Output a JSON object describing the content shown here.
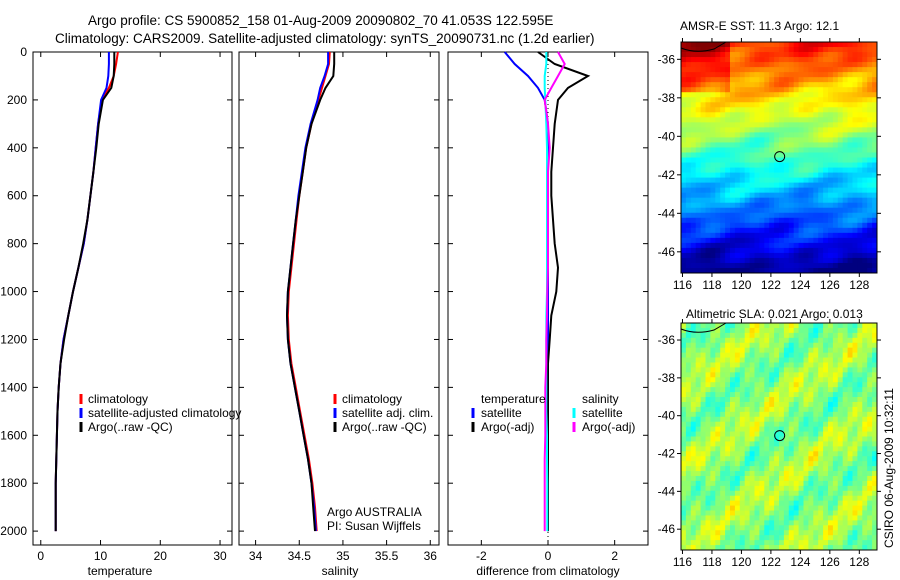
{
  "chart_data": [
    {
      "type": "line",
      "title_lines": [
        "Argo profile: CS 5900852_158 01-Aug-2009 20090802_70 41.053S 122.595E",
        "Climatology: CARS2009. Satellite-adjusted climatology: synTS_20090731.nc (1.2d earlier)"
      ],
      "xlabel": "temperature",
      "ylabel": "",
      "xlim": [
        -1.3,
        32
      ],
      "ylim": [
        0,
        2058
      ],
      "xticks": [
        0,
        10,
        20,
        30
      ],
      "yticks": [
        0,
        200,
        400,
        600,
        800,
        1000,
        1200,
        1400,
        1600,
        1800,
        2000
      ],
      "depth": [
        0,
        50,
        100,
        150,
        200,
        300,
        400,
        500,
        600,
        700,
        800,
        900,
        1000,
        1100,
        1200,
        1300,
        1400,
        1500,
        1600,
        1700,
        1800,
        1900,
        2000
      ],
      "series": [
        {
          "name": "climatology",
          "color": "#ff0000",
          "values": [
            12.9,
            12.6,
            12.2,
            11.4,
            10.2,
            9.6,
            9.2,
            8.8,
            8.3,
            7.8,
            7.2,
            6.3,
            5.4,
            4.6,
            3.8,
            3.3,
            3.0,
            2.8,
            2.7,
            2.6,
            2.5,
            2.5,
            2.5
          ]
        },
        {
          "name": "satellite-adjusted climatology",
          "color": "#0000ff",
          "values": [
            11.4,
            11.4,
            11.3,
            11.0,
            10.1,
            9.6,
            9.2,
            8.8,
            8.3,
            7.8,
            7.2,
            6.3,
            5.4,
            4.6,
            3.8,
            3.3,
            3.0,
            2.8,
            2.7,
            2.6,
            2.5,
            2.5,
            2.5
          ]
        },
        {
          "name": "Argo(..raw -QC)",
          "color": "#000000",
          "values": [
            12.3,
            12.3,
            12.2,
            11.8,
            10.4,
            9.7,
            9.3,
            8.8,
            8.3,
            7.8,
            7.1,
            6.3,
            5.4,
            4.6,
            3.9,
            3.3,
            3.0,
            2.8,
            2.7,
            2.6,
            2.5,
            2.5,
            2.5
          ]
        }
      ]
    },
    {
      "type": "line",
      "xlabel": "salinity",
      "xlim": [
        33.81,
        36.1
      ],
      "ylim": [
        0,
        2058
      ],
      "xticks": [
        "34",
        "34.5",
        "35",
        "35.5",
        "36"
      ],
      "annotation": [
        "Argo AUSTRALIA",
        "PI: Susan Wijffels"
      ],
      "depth": [
        0,
        50,
        100,
        150,
        200,
        300,
        400,
        500,
        600,
        700,
        800,
        900,
        1000,
        1100,
        1200,
        1300,
        1400,
        1500,
        1600,
        1700,
        1800,
        1900,
        2000
      ],
      "series": [
        {
          "name": "climatology",
          "color": "#ff0000",
          "values": [
            34.85,
            34.84,
            34.8,
            34.76,
            34.72,
            34.64,
            34.58,
            34.54,
            34.5,
            34.47,
            34.44,
            34.41,
            34.38,
            34.37,
            34.38,
            34.41,
            34.46,
            34.51,
            34.56,
            34.61,
            34.65,
            34.68,
            34.7
          ]
        },
        {
          "name": "satellite adj. clim.",
          "color": "#0000ff",
          "values": [
            34.83,
            34.83,
            34.79,
            34.74,
            34.71,
            34.63,
            34.57,
            34.53,
            34.49,
            34.46,
            34.43,
            34.4,
            34.37,
            34.36,
            34.37,
            34.4,
            34.45,
            34.5,
            34.55,
            34.6,
            34.64,
            34.67,
            34.69
          ]
        },
        {
          "name": "Argo(..raw -QC)",
          "color": "#000000",
          "values": [
            34.9,
            34.9,
            34.89,
            34.8,
            34.74,
            34.64,
            34.58,
            34.54,
            34.5,
            34.46,
            34.43,
            34.4,
            34.37,
            34.36,
            34.37,
            34.4,
            34.45,
            34.5,
            34.55,
            34.6,
            34.64,
            34.66,
            34.68
          ]
        }
      ]
    },
    {
      "type": "line",
      "xlabel": "difference from climatology",
      "xlim": [
        -3.0,
        3.0
      ],
      "ylim": [
        0,
        2058
      ],
      "xticks": [
        -2,
        0,
        2
      ],
      "legend_headers": [
        "temperature",
        "salinity"
      ],
      "depth": [
        0,
        50,
        100,
        150,
        200,
        300,
        400,
        500,
        600,
        700,
        800,
        900,
        1000,
        1100,
        1200,
        1300,
        1400,
        1500,
        1600,
        1700,
        1800,
        1900,
        2000
      ],
      "series": [
        {
          "name": "satellite",
          "group": "temperature",
          "color": "#0000ff",
          "values": [
            -1.3,
            -1.0,
            -0.6,
            -0.3,
            -0.1,
            0,
            0,
            0,
            0,
            0,
            0,
            0,
            0,
            0,
            0,
            0,
            0,
            0,
            0,
            0,
            0,
            0,
            0
          ]
        },
        {
          "name": "Argo(-adj)",
          "group": "temperature",
          "color": "#000000",
          "values": [
            -0.3,
            0.2,
            1.2,
            0.6,
            0.3,
            0.2,
            0.15,
            0.1,
            0.1,
            0.15,
            0.2,
            0.3,
            0.25,
            0.1,
            0.05,
            0,
            0,
            0,
            0,
            0,
            0,
            0,
            0
          ]
        },
        {
          "name": "satellite",
          "group": "salinity",
          "color": "#00ffff",
          "values": [
            -0.05,
            -0.05,
            -0.1,
            -0.1,
            -0.08,
            -0.05,
            -0.03,
            -0.03,
            -0.03,
            -0.03,
            -0.03,
            -0.03,
            -0.03,
            -0.05,
            -0.05,
            -0.05,
            -0.05,
            -0.05,
            -0.03,
            -0.03,
            -0.02,
            -0.02,
            -0.02
          ]
        },
        {
          "name": "Argo(-adj)",
          "group": "salinity",
          "color": "#ff00ff",
          "values": [
            0.3,
            0.5,
            0.3,
            0.1,
            -0.1,
            0,
            0.05,
            0,
            0,
            0,
            0,
            0,
            -0.02,
            -0.03,
            -0.05,
            -0.05,
            -0.08,
            -0.08,
            -0.08,
            -0.1,
            -0.1,
            -0.1,
            -0.1
          ]
        }
      ]
    },
    {
      "type": "heatmap",
      "title": "AMSR-E SST: 11.3 Argo: 12.1",
      "xlim": [
        115.9,
        129.2
      ],
      "ylim": [
        -47.1,
        -35.1
      ],
      "xticks": [
        116,
        118,
        120,
        122,
        124,
        126,
        128
      ],
      "yticks": [
        -36,
        -38,
        -40,
        -42,
        -44,
        -46
      ],
      "marker": {
        "lon": 122.595,
        "lat": -41.053
      },
      "colormap": "jet"
    },
    {
      "type": "heatmap",
      "title": "Altimetric SLA: 0.021 Argo: 0.013",
      "xlim": [
        115.9,
        129.2
      ],
      "ylim": [
        -47.1,
        -35.1
      ],
      "xticks": [
        116,
        118,
        120,
        122,
        124,
        126,
        128
      ],
      "yticks": [
        -36,
        -38,
        -40,
        -42,
        -44,
        -46
      ],
      "marker": {
        "lon": 122.595,
        "lat": -41.053
      },
      "colormap": "jet"
    }
  ],
  "footer_stamp": "CSIRO 06-Aug-2009 10:32:11"
}
